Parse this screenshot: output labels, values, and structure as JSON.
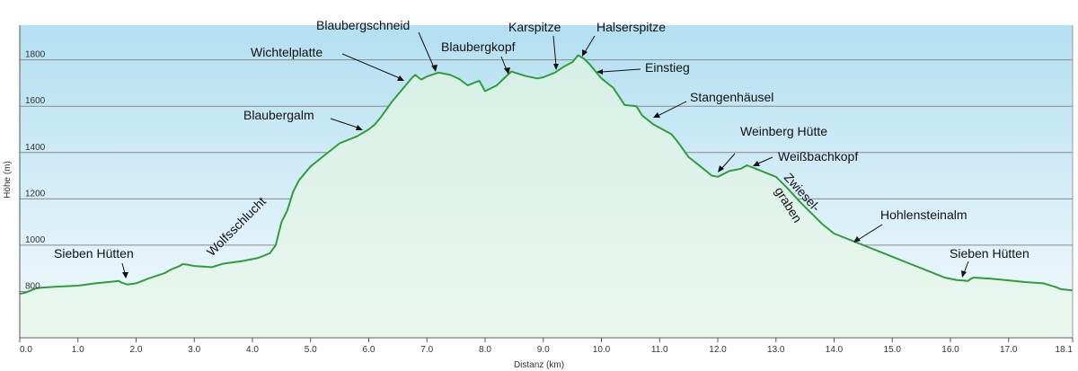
{
  "chart_data": {
    "type": "area",
    "xlabel": "Distanz  (km)",
    "ylabel": "Höhe (m)",
    "xlim": [
      0,
      18.1
    ],
    "ylim": [
      600,
      1950
    ],
    "x_ticks": [
      0,
      1,
      2,
      3,
      4,
      5,
      6,
      7,
      8,
      9,
      10,
      11,
      12,
      13,
      14,
      15,
      16,
      17,
      18.1
    ],
    "x_tick_labels": [
      "0.0",
      "1.0",
      "2.0",
      "3.0",
      "4.0",
      "5.0",
      "6.0",
      "7.0",
      "8.0",
      "9.0",
      "10.0",
      "11.0",
      "12.0",
      "13.0",
      "14.0",
      "15.0",
      "16.0",
      "17.0",
      "18.1"
    ],
    "y_ticks": [
      800,
      1000,
      1200,
      1400,
      1600,
      1800
    ],
    "y_tick_labels": [
      "800",
      "1000",
      "1200",
      "1400",
      "1600",
      "1800"
    ],
    "grid": true,
    "colors": {
      "line": "#2f9e3a",
      "fill_bottom": "#eaf7ef",
      "fill_top": "#d6f0e6",
      "sky_top": "#b3dff2",
      "sky_bottom": "#f4fafd"
    },
    "x": [
      0,
      0.1,
      0.3,
      0.6,
      1.0,
      1.3,
      1.7,
      1.75,
      1.85,
      2.0,
      2.2,
      2.5,
      2.6,
      2.75,
      2.8,
      2.9,
      3.0,
      3.3,
      3.5,
      3.8,
      4.1,
      4.2,
      4.3,
      4.4,
      4.5,
      4.6,
      4.7,
      4.8,
      5.0,
      5.2,
      5.5,
      5.8,
      6.0,
      6.1,
      6.2,
      6.4,
      6.6,
      6.75,
      6.8,
      6.9,
      7.0,
      7.2,
      7.4,
      7.55,
      7.7,
      7.8,
      7.9,
      8.0,
      8.2,
      8.45,
      8.7,
      8.9,
      9.0,
      9.2,
      9.35,
      9.5,
      9.6,
      9.7,
      9.8,
      9.9,
      10.0,
      10.1,
      10.2,
      10.4,
      10.6,
      10.7,
      10.9,
      11.2,
      11.3,
      11.5,
      11.7,
      11.9,
      12.0,
      12.2,
      12.4,
      12.5,
      12.7,
      12.9,
      13.0,
      13.2,
      13.4,
      13.6,
      13.8,
      14.0,
      14.3,
      14.6,
      14.8,
      15.0,
      15.3,
      15.6,
      15.9,
      16.1,
      16.3,
      16.35,
      16.4,
      16.7,
      17.0,
      17.3,
      17.6,
      17.8,
      17.9,
      18.1
    ],
    "y": [
      790,
      795,
      815,
      820,
      825,
      835,
      845,
      838,
      830,
      835,
      855,
      880,
      895,
      910,
      918,
      915,
      910,
      905,
      920,
      930,
      945,
      955,
      965,
      1000,
      1100,
      1150,
      1230,
      1280,
      1340,
      1380,
      1440,
      1470,
      1500,
      1520,
      1550,
      1620,
      1680,
      1725,
      1735,
      1715,
      1728,
      1745,
      1735,
      1718,
      1690,
      1700,
      1710,
      1665,
      1690,
      1750,
      1730,
      1720,
      1725,
      1745,
      1770,
      1790,
      1820,
      1805,
      1780,
      1750,
      1720,
      1700,
      1680,
      1605,
      1600,
      1560,
      1520,
      1480,
      1450,
      1380,
      1340,
      1300,
      1295,
      1320,
      1330,
      1345,
      1325,
      1305,
      1295,
      1245,
      1190,
      1140,
      1090,
      1050,
      1020,
      990,
      970,
      950,
      920,
      890,
      860,
      850,
      845,
      855,
      860,
      855,
      848,
      840,
      835,
      820,
      810,
      805
    ],
    "annotations": [
      {
        "text": "Sieben Hütten",
        "x": 1.85,
        "y": 830
      },
      {
        "text": "Wolfsschlucht",
        "x": 3.8,
        "y": 930
      },
      {
        "text": "Blaubergalm",
        "x": 5.95,
        "y": 1520
      },
      {
        "text": "Wichtelplatte",
        "x": 6.75,
        "y": 1735
      },
      {
        "text": "Blaubergschneid",
        "x": 7.2,
        "y": 1745
      },
      {
        "text": "Blaubergkopf",
        "x": 8.45,
        "y": 1750
      },
      {
        "text": "Karspitze",
        "x": 9.2,
        "y": 1775
      },
      {
        "text": "Halserspitze",
        "x": 9.6,
        "y": 1820
      },
      {
        "text": "Einstieg",
        "x": 9.9,
        "y": 1780
      },
      {
        "text": "Stangenhäusel",
        "x": 10.9,
        "y": 1600
      },
      {
        "text": "Weinberg Hütte",
        "x": 12.0,
        "y": 1305
      },
      {
        "text": "Weißbachkopf",
        "x": 12.6,
        "y": 1340
      },
      {
        "text": "Zwiesel-",
        "x": 13.1,
        "y": 1280
      },
      {
        "text": "graben",
        "x": 13.1,
        "y": 1280
      },
      {
        "text": "Hohlensteinalm",
        "x": 14.3,
        "y": 1020
      },
      {
        "text": "Sieben Hütten",
        "x": 16.25,
        "y": 855
      }
    ]
  }
}
